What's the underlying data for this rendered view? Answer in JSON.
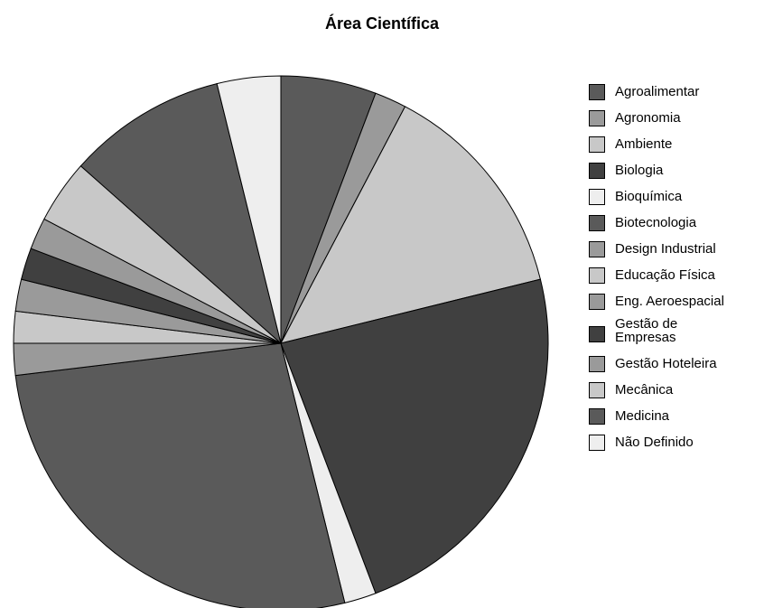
{
  "chart_data": {
    "type": "pie",
    "title": "Área Científica",
    "legend_position": "right",
    "slices": [
      {
        "label": "Agroalimentar",
        "value": 6,
        "color": "#5a5a5a"
      },
      {
        "label": "Agronomia",
        "value": 2,
        "color": "#9a9a9a"
      },
      {
        "label": "Ambiente",
        "value": 14,
        "color": "#c8c8c8"
      },
      {
        "label": "Biologia",
        "value": 24,
        "color": "#404040"
      },
      {
        "label": "Bioquímica",
        "value": 2,
        "color": "#eeeeee"
      },
      {
        "label": "Biotecnologia",
        "value": 28,
        "color": "#5a5a5a"
      },
      {
        "label": "Design Industrial",
        "value": 2,
        "color": "#9a9a9a"
      },
      {
        "label": "Educação Física",
        "value": 2,
        "color": "#c8c8c8"
      },
      {
        "label": "Eng. Aeroespacial",
        "value": 2,
        "color": "#9a9a9a"
      },
      {
        "label": "Gestão de Empresas",
        "value": 2,
        "color": "#404040"
      },
      {
        "label": "Gestão Hoteleira",
        "value": 2,
        "color": "#9a9a9a"
      },
      {
        "label": "Mecânica",
        "value": 4,
        "color": "#c8c8c8"
      },
      {
        "label": "Medicina",
        "value": 10,
        "color": "#5a5a5a"
      },
      {
        "label": "Não Definido",
        "value": 4,
        "color": "#eeeeee"
      }
    ]
  }
}
